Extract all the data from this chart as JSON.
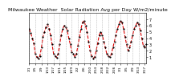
{
  "title": "Milwaukee Weather  Solar Radiation Avg per Day W/m2/minute",
  "title_fontsize": 4.5,
  "line_color": "#dd0000",
  "marker_color": "#000000",
  "line_style": "--",
  "line_width": 0.8,
  "marker_size": 1.2,
  "background_color": "#ffffff",
  "grid_color": "#aaaaaa",
  "ylim": [
    0,
    8
  ],
  "yticks": [
    1,
    2,
    3,
    4,
    5,
    6,
    7
  ],
  "ylabel_fontsize": 3.5,
  "xlabel_fontsize": 3.0,
  "x_values": [
    0,
    1,
    2,
    3,
    4,
    5,
    6,
    7,
    8,
    9,
    10,
    11,
    12,
    13,
    14,
    15,
    16,
    17,
    18,
    19,
    20,
    21,
    22,
    23,
    24,
    25,
    26,
    27,
    28,
    29,
    30,
    31,
    32,
    33,
    34,
    35,
    36,
    37,
    38,
    39,
    40,
    41,
    42,
    43,
    44,
    45,
    46,
    47,
    48,
    49,
    50,
    51,
    52,
    53,
    54,
    55,
    56,
    57,
    58,
    59,
    60,
    61,
    62,
    63,
    64,
    65,
    66,
    67,
    68,
    69,
    70,
    71,
    72,
    73,
    74,
    75,
    76,
    77
  ],
  "y_values": [
    5.5,
    4.8,
    4.0,
    3.2,
    1.5,
    1.0,
    0.8,
    1.2,
    2.5,
    4.2,
    5.0,
    5.8,
    6.2,
    5.5,
    4.5,
    3.0,
    1.5,
    1.2,
    0.9,
    1.5,
    3.0,
    4.5,
    5.5,
    6.0,
    5.8,
    5.2,
    4.0,
    3.0,
    1.8,
    1.5,
    1.0,
    1.5,
    2.8,
    4.2,
    5.5,
    6.5,
    6.8,
    6.0,
    5.0,
    3.5,
    2.0,
    1.2,
    0.8,
    1.0,
    2.0,
    3.2,
    4.5,
    5.0,
    4.5,
    3.5,
    2.5,
    1.5,
    1.2,
    1.0,
    1.5,
    2.5,
    3.5,
    4.5,
    5.5,
    6.2,
    6.8,
    6.5,
    5.5,
    4.2,
    3.0,
    2.0,
    2.5,
    3.5,
    4.5,
    5.5,
    6.0,
    6.5,
    6.2,
    5.2,
    4.0,
    2.8,
    2.5,
    3.0
  ],
  "x_tick_positions": [
    0,
    4,
    8,
    12,
    16,
    20,
    24,
    28,
    32,
    36,
    40,
    44,
    48,
    52,
    56,
    60,
    64,
    68,
    72,
    76
  ],
  "x_tick_labels": [
    "1/1",
    "1/5",
    "1/9",
    "1/13",
    "1/17",
    "1/21",
    "1/25",
    "1/29",
    "2/2",
    "2/6",
    "2/10",
    "2/14",
    "2/18",
    "2/22",
    "2/26",
    "3/1",
    "3/5",
    "3/9",
    "3/13",
    "3/17"
  ]
}
